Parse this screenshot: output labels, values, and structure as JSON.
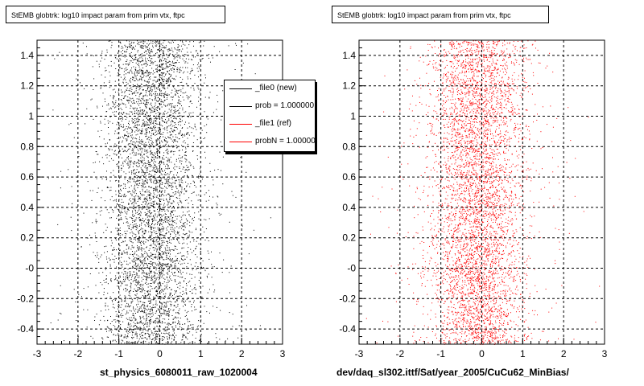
{
  "pads": [
    {
      "title": "StEMB globtrk: log10 impact param from prim vtx, ftpc",
      "xlabel": "st_physics_6080011_raw_1020004"
    },
    {
      "title": "StEMB globtrk: log10 impact param from prim vtx, ftpc",
      "xlabel": "dev/daq_sl302.ittf/Sat/year_2005/CuCu62_MinBias/"
    }
  ],
  "legend": {
    "entries": [
      {
        "label": "_file0 (new)",
        "color": "#000000"
      },
      {
        "label": "prob = 1.000000",
        "color": "#000000"
      },
      {
        "label": "_file1 (ref)",
        "color": "#ff0000"
      },
      {
        "label": "probN = 1.000000",
        "color": "#ff0000"
      }
    ]
  },
  "footnote": "",
  "chart_data": [
    {
      "type": "scatter",
      "title": "StEMB globtrk: log10 impact param from prim vtx, ftpc",
      "xlabel": "st_physics_6080011_raw_1020004",
      "ylabel": "",
      "xlim": [
        -3,
        3
      ],
      "ylim": [
        -0.5,
        1.5
      ],
      "x_ticks": [
        "-3",
        "-2",
        "-1",
        "0",
        "1",
        "2",
        "3"
      ],
      "y_ticks": [
        "-0.4",
        "-0.2",
        "-0",
        "0.2",
        "0.4",
        "0.6",
        "0.8",
        "1",
        "1.2",
        "1.4"
      ],
      "grid": true,
      "marker_color": "#000000",
      "distribution": {
        "x_center": -0.2,
        "x_spread": 0.55,
        "y_range": [
          -0.5,
          1.5
        ]
      },
      "legend_position": "top-right",
      "series": [
        {
          "name": "_file0 (new)"
        },
        {
          "name": "_file1 (ref)"
        }
      ]
    },
    {
      "type": "scatter",
      "title": "StEMB globtrk: log10 impact param from prim vtx, ftpc",
      "xlabel": "dev/daq_sl302.ittf/Sat/year_2005/CuCu62_MinBias/",
      "ylabel": "",
      "xlim": [
        -3,
        3
      ],
      "ylim": [
        -0.5,
        1.5
      ],
      "x_ticks": [
        "-3",
        "-2",
        "-1",
        "0",
        "1",
        "2",
        "3"
      ],
      "y_ticks": [
        "-0.4",
        "-0.2",
        "-0",
        "0.2",
        "0.4",
        "0.6",
        "0.8",
        "1",
        "1.2",
        "1.4"
      ],
      "grid": true,
      "marker_color": "#ff0000",
      "distribution": {
        "x_center": -0.1,
        "x_spread": 0.55,
        "y_range": [
          -0.5,
          1.5
        ]
      }
    }
  ]
}
